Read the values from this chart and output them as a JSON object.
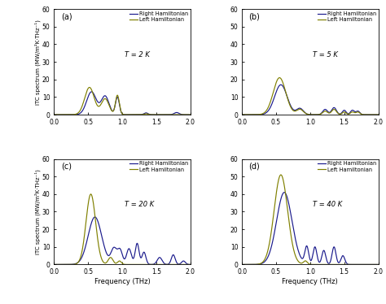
{
  "panels": [
    {
      "label": "(a)",
      "temp": "T = 2 K",
      "ylim": [
        0,
        60
      ]
    },
    {
      "label": "(b)",
      "temp": "T = 5 K",
      "ylim": [
        0,
        60
      ]
    },
    {
      "label": "(c)",
      "temp": "T = 20 K",
      "ylim": [
        0,
        60
      ]
    },
    {
      "label": "(d)",
      "temp": "T = 40 K",
      "ylim": [
        0,
        60
      ]
    }
  ],
  "right_color": "#1a1a8c",
  "left_color": "#808000",
  "ylabel": "ITC spectrum (MW/m²K·THz⁻¹)",
  "xlabel": "Frequency (THz)",
  "legend_right": "Right Hamiltonian",
  "legend_left": "Left Hamiltonian",
  "xlim": [
    0.0,
    2.0
  ],
  "xticks": [
    0.0,
    0.5,
    1.0,
    1.5,
    2.0
  ],
  "yticks": [
    0,
    10,
    20,
    30,
    40,
    50,
    60
  ]
}
